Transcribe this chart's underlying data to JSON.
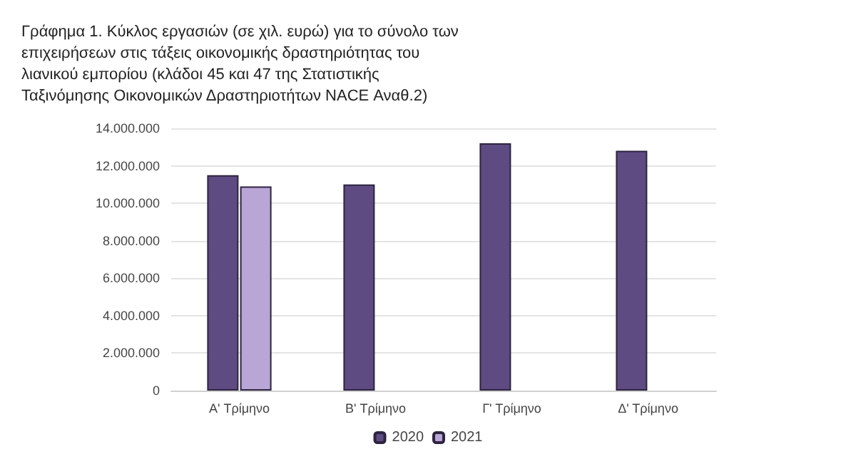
{
  "chart_data": {
    "type": "bar",
    "title": "Γράφημα 1. Κύκλος εργασιών (σε χιλ. ευρώ) για το σύνολο των επιχειρήσεων στις τάξεις οικονομικής δραστηριότητας του λιανικού εμπορίου (κλάδοι 45 και 47 της Στατιστικής Ταξινόμησης Οικονομικών Δραστηριοτήτων NACE Αναθ.2)",
    "categories": [
      "A' Τρίμηνο",
      "B' Τρίμηνο",
      "Γ' Τρίμηνο",
      "Δ' Τρίμηνο"
    ],
    "series": [
      {
        "name": "2020",
        "color": "#5e4b82",
        "values": [
          11500000,
          11000000,
          13200000,
          12800000
        ]
      },
      {
        "name": "2021",
        "color": "#b9a5d6",
        "values": [
          10900000,
          null,
          null,
          null
        ]
      }
    ],
    "ylim": [
      0,
      14000000
    ],
    "yticks": [
      0,
      {
        "value": 2000000,
        "label": "2.000.000"
      },
      {
        "value": 4000000,
        "label": "4.000.000"
      },
      {
        "value": 6000000,
        "label": "6.000.000"
      },
      {
        "value": 8000000,
        "label": "8.000.000"
      },
      {
        "value": 10000000,
        "label": "10.000.000"
      },
      {
        "value": 12000000,
        "label": "12.000.000"
      },
      {
        "value": 14000000,
        "label": "14.000.000"
      }
    ],
    "grid": "y",
    "legend": "bottom"
  }
}
